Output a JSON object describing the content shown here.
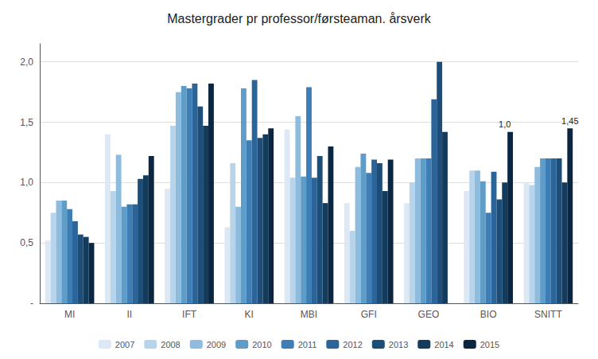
{
  "chart_data": {
    "type": "bar",
    "title": "Mastergrader pr professor/førsteaman. årsverk",
    "categories": [
      "MI",
      "II",
      "IFT",
      "KI",
      "MBI",
      "GFI",
      "GEO",
      "BIO",
      "SNITT"
    ],
    "series": [
      {
        "name": "2007",
        "color": "#dce9f5",
        "values": [
          0.52,
          1.4,
          0.95,
          0.63,
          1.44,
          0.83,
          0.83,
          0.93,
          1.0
        ]
      },
      {
        "name": "2008",
        "color": "#b8d4eb",
        "values": [
          0.75,
          0.93,
          1.47,
          1.16,
          1.04,
          0.6,
          1.0,
          1.1,
          0.98
        ]
      },
      {
        "name": "2009",
        "color": "#8dbcde",
        "values": [
          0.85,
          1.23,
          1.75,
          0.8,
          1.55,
          1.13,
          1.2,
          1.1,
          1.13
        ]
      },
      {
        "name": "2010",
        "color": "#5f9dc9",
        "values": [
          0.85,
          0.8,
          1.8,
          1.78,
          1.05,
          1.24,
          1.2,
          1.01,
          1.2
        ]
      },
      {
        "name": "2011",
        "color": "#3c7eb5",
        "values": [
          0.78,
          0.82,
          1.78,
          1.35,
          1.79,
          1.08,
          1.2,
          0.75,
          1.2
        ]
      },
      {
        "name": "2012",
        "color": "#2a6499",
        "values": [
          0.68,
          0.82,
          1.82,
          1.85,
          1.04,
          1.19,
          1.69,
          1.09,
          1.2
        ]
      },
      {
        "name": "2013",
        "color": "#1d4e7a",
        "values": [
          0.57,
          1.03,
          1.63,
          1.37,
          1.22,
          1.16,
          2.0,
          0.86,
          1.2
        ]
      },
      {
        "name": "2014",
        "color": "#133b5c",
        "values": [
          0.55,
          1.06,
          1.47,
          1.4,
          0.83,
          0.93,
          1.42,
          1.0,
          1.0
        ]
      },
      {
        "name": "2015",
        "color": "#0a2640",
        "values": [
          0.5,
          1.22,
          1.82,
          1.45,
          1.3,
          1.19,
          0.0,
          1.42,
          1.45
        ]
      }
    ],
    "ylim": [
      0,
      2.15
    ],
    "yticks": [
      {
        "value": 0.0,
        "label": "-"
      },
      {
        "value": 0.5,
        "label": "0,5"
      },
      {
        "value": 1.0,
        "label": "1,0"
      },
      {
        "value": 1.5,
        "label": "1,5"
      },
      {
        "value": 2.0,
        "label": "2,0"
      }
    ],
    "annotations": [
      {
        "text": "1,45",
        "x": "SNITT",
        "series": "2015",
        "y": 1.45
      },
      {
        "text": "1,0",
        "x": "BIO",
        "series": "2014",
        "y": 1.0
      }
    ],
    "grid": true,
    "legend": "bottom"
  }
}
